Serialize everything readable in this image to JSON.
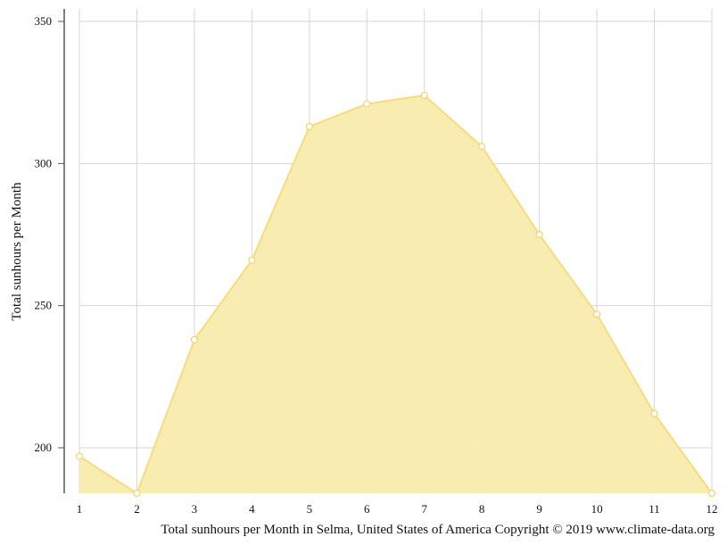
{
  "chart_data": {
    "type": "area",
    "x": [
      1,
      2,
      3,
      4,
      5,
      6,
      7,
      8,
      9,
      10,
      11,
      12
    ],
    "values": [
      197,
      184,
      238,
      266,
      313,
      321,
      324,
      306,
      275,
      247,
      212,
      184
    ],
    "xlabel": "",
    "ylabel": "Total sunhours per Month",
    "yticks": [
      200,
      250,
      300,
      350
    ],
    "xlim": [
      1,
      12
    ],
    "ylim": [
      184,
      354
    ],
    "grid": true,
    "legend": "none",
    "colors": {
      "fill": "#f9ebac",
      "line": "#f6dc7f",
      "marker_fill": "#ffffff",
      "grid": "#d6d6d6",
      "axis": "#555555"
    },
    "caption": "Total sunhours per Month in Selma, United States of America Copyright © 2019 www.climate-data.org"
  }
}
